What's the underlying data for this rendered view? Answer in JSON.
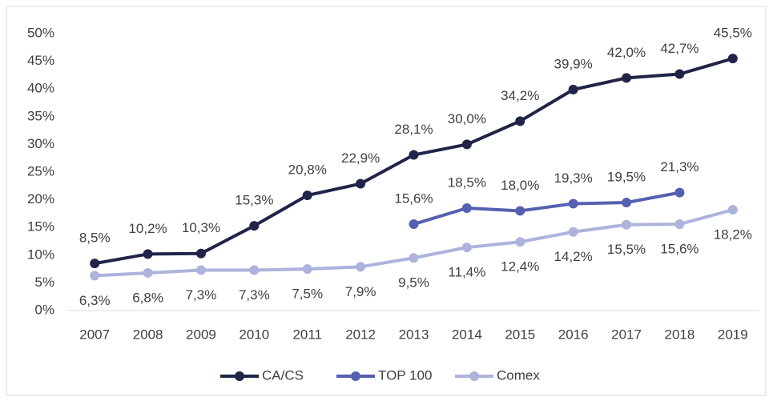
{
  "chart_data": {
    "type": "line",
    "categories": [
      "2007",
      "2008",
      "2009",
      "2010",
      "2011",
      "2012",
      "2013",
      "2014",
      "2015",
      "2016",
      "2017",
      "2018",
      "2019"
    ],
    "series": [
      {
        "name": "CA/CS",
        "color": "#1f2448",
        "values": [
          8.5,
          10.2,
          10.3,
          15.3,
          20.8,
          22.9,
          28.1,
          30.0,
          34.2,
          39.9,
          42.0,
          42.7,
          45.5
        ],
        "value_labels": [
          "8,5%",
          "10,2%",
          "10,3%",
          "15,3%",
          "20,8%",
          "22,9%",
          "28,1%",
          "30,0%",
          "34,2%",
          "39,9%",
          "42,0%",
          "42,7%",
          "45,5%"
        ]
      },
      {
        "name": "TOP 100",
        "color": "#5560b0",
        "values": [
          null,
          null,
          null,
          null,
          null,
          null,
          15.6,
          18.5,
          18.0,
          19.3,
          19.5,
          21.3,
          null
        ],
        "value_labels": [
          null,
          null,
          null,
          null,
          null,
          null,
          "15,6%",
          "18,5%",
          "18,0%",
          "19,3%",
          "19,5%",
          "21,3%",
          null
        ]
      },
      {
        "name": "Comex",
        "color": "#adb3dc",
        "values": [
          6.3,
          6.8,
          7.3,
          7.3,
          7.5,
          7.9,
          9.5,
          11.4,
          12.4,
          14.2,
          15.5,
          15.6,
          18.2
        ],
        "value_labels": [
          "6,3%",
          "6,8%",
          "7,3%",
          "7,3%",
          "7,5%",
          "7,9%",
          "9,5%",
          "11,4%",
          "12,4%",
          "14,2%",
          "15,5%",
          "15,6%",
          "18,2%"
        ]
      }
    ],
    "ylim": [
      0,
      50
    ],
    "yticks": [
      {
        "value": 0,
        "label": "0%"
      },
      {
        "value": 5,
        "label": "5%"
      },
      {
        "value": 10,
        "label": "10%"
      },
      {
        "value": 15,
        "label": "15%"
      },
      {
        "value": 20,
        "label": "20%"
      },
      {
        "value": 25,
        "label": "25%"
      },
      {
        "value": 30,
        "label": "30%"
      },
      {
        "value": 35,
        "label": "35%"
      },
      {
        "value": 40,
        "label": "40%"
      },
      {
        "value": 45,
        "label": "45%"
      },
      {
        "value": 50,
        "label": "50%"
      }
    ],
    "grid": false,
    "legend": "bottom"
  }
}
